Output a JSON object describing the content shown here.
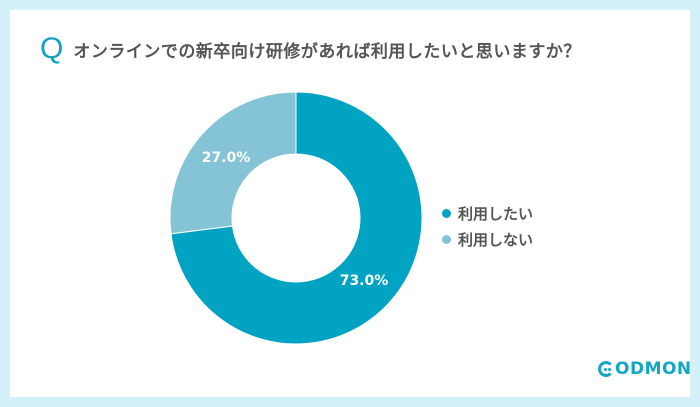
{
  "question": {
    "mark": "Q",
    "text": "オンラインでの新卒向け研修があれば利用したいと思いますか？"
  },
  "colors": {
    "background": "#d4f0f8",
    "accent": "#0fa2c0",
    "series_primary": "#00a3c1",
    "series_secondary": "#85c4d6",
    "text": "#555555"
  },
  "legend": {
    "items": [
      {
        "label": "利用したい",
        "color": "#00a3c1"
      },
      {
        "label": "利用しない",
        "color": "#85c4d6"
      }
    ]
  },
  "slice_labels": {
    "use": "73.0%",
    "not_use": "27.0%"
  },
  "logo": {
    "text": "ODMON",
    "full": "CODMON"
  },
  "chart_data": {
    "type": "pie",
    "title": "オンラインでの新卒向け研修があれば利用したいと思いますか？",
    "donut": true,
    "categories": [
      "利用したい",
      "利用しない"
    ],
    "values": [
      73.0,
      27.0
    ],
    "unit": "%",
    "colors": [
      "#00a3c1",
      "#85c4d6"
    ],
    "legend_position": "right",
    "start_angle": "12 o'clock, clockwise"
  }
}
